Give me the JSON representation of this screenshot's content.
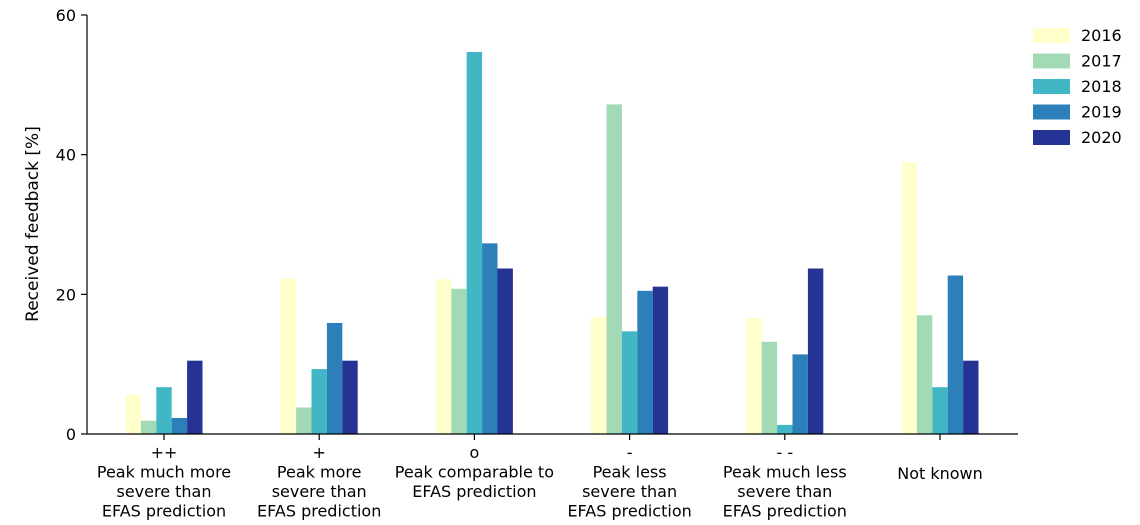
{
  "chart_data": {
    "type": "bar",
    "title": "",
    "xlabel": "",
    "ylabel": "Received feedback [%]",
    "ylim": [
      0,
      60
    ],
    "yticks": [
      0,
      20,
      40,
      60
    ],
    "grid": false,
    "legend_position": "top-right",
    "categories": [
      {
        "symbol": "++",
        "lines": [
          "Peak much more",
          "severe than",
          "EFAS prediction"
        ]
      },
      {
        "symbol": "+",
        "lines": [
          "Peak more",
          "severe than",
          "EFAS prediction"
        ]
      },
      {
        "symbol": "o",
        "lines": [
          "Peak comparable to",
          "EFAS prediction"
        ]
      },
      {
        "symbol": "-",
        "lines": [
          "Peak less",
          "severe than",
          "EFAS prediction"
        ]
      },
      {
        "symbol": "- -",
        "lines": [
          "Peak much less",
          "severe than",
          "EFAS prediction"
        ]
      },
      {
        "symbol": "",
        "lines": [
          "Not known"
        ]
      }
    ],
    "series": [
      {
        "name": "2016",
        "color": "#ffffcc",
        "values": [
          5.6,
          22.2,
          22.2,
          16.7,
          16.7,
          38.9
        ]
      },
      {
        "name": "2017",
        "color": "#a1dab4",
        "values": [
          1.9,
          3.8,
          20.8,
          47.2,
          13.2,
          17.0
        ]
      },
      {
        "name": "2018",
        "color": "#41b6c4",
        "values": [
          6.7,
          9.3,
          54.7,
          14.7,
          1.3,
          6.7
        ]
      },
      {
        "name": "2019",
        "color": "#2c7fb8",
        "values": [
          2.3,
          15.9,
          27.3,
          20.5,
          11.4,
          22.7
        ]
      },
      {
        "name": "2020",
        "color": "#253494",
        "values": [
          10.5,
          10.5,
          23.7,
          21.1,
          23.7,
          10.5
        ]
      }
    ]
  }
}
